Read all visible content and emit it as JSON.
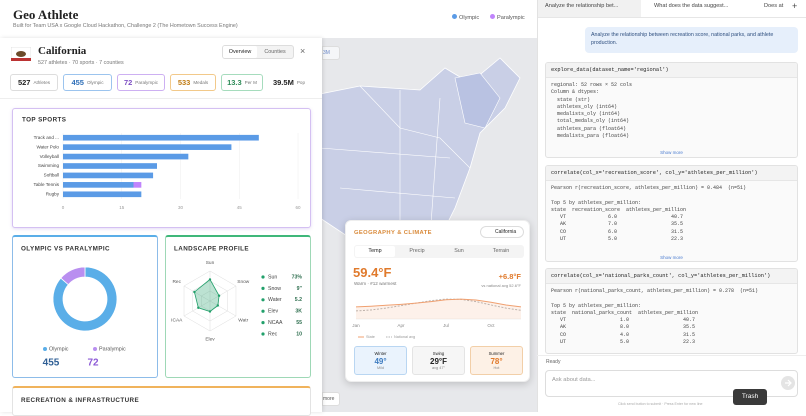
{
  "header": {
    "title": "Geo Athlete",
    "subtitle": "Built for Team USA x Google Cloud Hackathon, Challenge 2 (The Hometown Success Engine)"
  },
  "map": {
    "buttons": [
      "3M",
      "more"
    ]
  },
  "state_panel": {
    "name": "California",
    "summary": "527 athletes · 70 sports · 7 counties",
    "tabs": [
      "Overview",
      "Counties"
    ],
    "close": "×",
    "stats": [
      {
        "value": "527",
        "label": "Athletes"
      },
      {
        "value": "455",
        "label": "Olympic"
      },
      {
        "value": "72",
        "label": "Paralympic"
      },
      {
        "value": "533",
        "label": "Medals"
      },
      {
        "value": "13.3",
        "label": "Per M"
      },
      {
        "value": "39.5M",
        "label": "Pop"
      }
    ],
    "bottom_card": "RECREATION & INFRASTRUCTURE"
  },
  "landscape_list": [
    {
      "label": "Sun",
      "value": "73%"
    },
    {
      "label": "Snow",
      "value": "9\""
    },
    {
      "label": "Water",
      "value": "5.2"
    },
    {
      "label": "Elev",
      "value": "3K"
    },
    {
      "label": "NCAA",
      "value": "55"
    },
    {
      "label": "Rec",
      "value": "10"
    }
  ],
  "climate": {
    "title": "GEOGRAPHY & CLIMATE",
    "chip": "California",
    "tabs": [
      "Temp",
      "Precip",
      "Sun",
      "Terrain"
    ],
    "value": "59.4°F",
    "delta": "+6.8°F",
    "rank": "Warm · #12 warmest",
    "national": "vs national avg 52.6°F",
    "seasons": [
      {
        "label": "Winter",
        "value": "49°",
        "note": "Mild"
      },
      {
        "label": "Swing",
        "value": "29°F",
        "note": "avg 47°"
      },
      {
        "label": "Summer",
        "value": "78°",
        "note": "Hot"
      }
    ]
  },
  "chat": {
    "tabs": [
      "Analyze the relationship bet...",
      "What does the data suggest...",
      "Does at"
    ],
    "add": "+",
    "user_message": "Analyze the relationship between recreation score, national parks, and athlete production.",
    "blocks": [
      {
        "call": "explore_data(dataset_name='regional')",
        "output": "regional: 52 rows × 52 cols\nColumn & dtypes:\n  state (str)\n  athletes_oly (int64)\n  medalists_oly (int64)\n  total_medals_oly (int64)\n  athletes_para (float64)\n  medalists_para (float64)",
        "more": "Show more"
      },
      {
        "call": "correlate(col_x='recreation_score', col_y='athletes_per_million')",
        "output": "Pearson r(recreation_score, athletes_per_million) = 0.484  (n=51)\n\nTop 5 by athletes_per_million:\nstate  recreation_score  athletes_per_million\n   VT              6.0                  40.7\n   AK              7.0                  35.5\n   CO              6.0                  31.5\n   UT              5.0                  22.3",
        "more": "Show more"
      },
      {
        "call": "correlate(col_x='national_parks_count', col_y='athletes_per_million')",
        "output": "Pearson r(national_parks_count, athletes_per_million) = 0.278  (n=51)\n\nTop 5 by athletes_per_million:\nstate  national_parks_count  athletes_per_million\n   VT                  1.0                  40.7\n   AK                  8.0                  35.5\n   CO                  4.0                  31.5\n   UT                  5.0                  22.3"
      }
    ],
    "status": "Ready",
    "input_placeholder": "Ask about data...",
    "footer": "Click send button to submit · Press Enter for new line",
    "tooltip": "Trash"
  },
  "chart_data": [
    {
      "type": "bar",
      "orientation": "horizontal",
      "stacked": true,
      "title": "TOP SPORTS",
      "categories": [
        "Track and ...",
        "Water Polo",
        "Volleyball",
        "Swimming",
        "Softball",
        "Table Tennis",
        "Rugby"
      ],
      "series": [
        {
          "name": "Olympic",
          "color": "#5b9be6",
          "values": [
            50,
            43,
            32,
            24,
            23,
            18,
            20
          ]
        },
        {
          "name": "Paralympic",
          "color": "#c084fc",
          "values": [
            0,
            0,
            0,
            0,
            0,
            2,
            0
          ]
        }
      ],
      "xlim": [
        0,
        60
      ],
      "xticks": [
        0,
        15,
        30,
        45,
        60
      ],
      "grid": true
    },
    {
      "type": "pie",
      "donut": true,
      "title": "OLYMPIC VS PARALYMPIC",
      "categories": [
        "Olympic",
        "Paralympic"
      ],
      "values": [
        455,
        72
      ],
      "colors": [
        "#5aaee8",
        "#b98ff0"
      ]
    },
    {
      "type": "radar",
      "title": "LANDSCAPE PROFILE",
      "color": "#22a06b",
      "categories": [
        "Sun",
        "Snow",
        "Watr",
        "Elev",
        "ICAA",
        "Rec"
      ],
      "values": [
        0.72,
        0.35,
        0.3,
        0.35,
        0.45,
        0.6
      ],
      "rlim": [
        0,
        1
      ]
    },
    {
      "type": "line",
      "categories": [
        "Jan",
        null,
        null,
        "Apr",
        null,
        null,
        "Jul",
        null,
        null,
        "Oct",
        null,
        null
      ],
      "series": [
        {
          "name": "State",
          "color": "#f0a070",
          "values": [
            49,
            51,
            54,
            57,
            61,
            66,
            72,
            74,
            71,
            64,
            55,
            49
          ]
        },
        {
          "name": "National avg",
          "color": "#b5b5b5",
          "dashed": true,
          "values": [
            36,
            39,
            45,
            53,
            61,
            69,
            74,
            73,
            66,
            55,
            45,
            38
          ]
        }
      ],
      "ylim": [
        10,
        100
      ]
    }
  ]
}
